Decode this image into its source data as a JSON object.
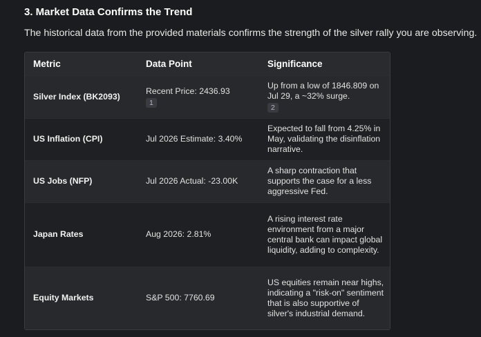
{
  "section": {
    "heading": "3. Market Data Confirms the Trend",
    "intro": "The historical data from the provided materials confirms the strength of the silver rally you are observing."
  },
  "table": {
    "headers": [
      "Metric",
      "Data Point",
      "Significance"
    ],
    "rows": [
      {
        "metric": "Silver Index (BK2093)",
        "data_point": "Recent Price: 2436.93",
        "data_point_cite": "1",
        "significance": "Up from a low of 1846.809 on Jul 29, a ~32% surge.",
        "significance_cite": "2"
      },
      {
        "metric": "US Inflation (CPI)",
        "data_point": "Jul 2026 Estimate: 3.40%",
        "significance": "Expected to fall from 4.25% in May, validating the disinflation narrative."
      },
      {
        "metric": "US Jobs (NFP)",
        "data_point": "Jul 2026 Actual: -23.00K",
        "significance": "A sharp contraction that supports the case for a less aggressive Fed."
      },
      {
        "metric": "Japan Rates",
        "data_point": "Aug 2026: 2.81%",
        "significance": "A rising interest rate environment from a major central bank can impact global liquidity, adding to complexity."
      },
      {
        "metric": "Equity Markets",
        "data_point": "S&P 500: 7760.69",
        "significance": "US equities remain near highs, indicating a \"risk-on\" sentiment that is also supportive of silver's industrial demand."
      }
    ]
  }
}
